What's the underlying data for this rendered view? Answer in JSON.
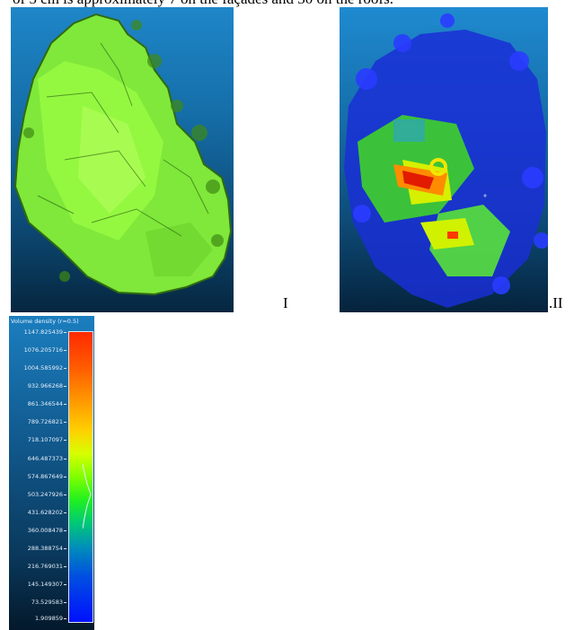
{
  "caption_fragment": "of 5 cm is approximately 7 on the façades and 30 on the roofs.",
  "figure": {
    "panel_labels": [
      "I",
      ".II"
    ],
    "color_scale": {
      "title": "Volume density (r=0.5)",
      "ticks": [
        "1147.825439",
        "1076.205716",
        "1004.585992",
        "932.966268",
        "861.346544",
        "789.726821",
        "718.107097",
        "646.487373",
        "574.867649",
        "503.247926",
        "431.628202",
        "360.008478",
        "288.388754",
        "216.769031",
        "145.149307",
        "73.529583",
        "1.909859"
      ]
    }
  }
}
